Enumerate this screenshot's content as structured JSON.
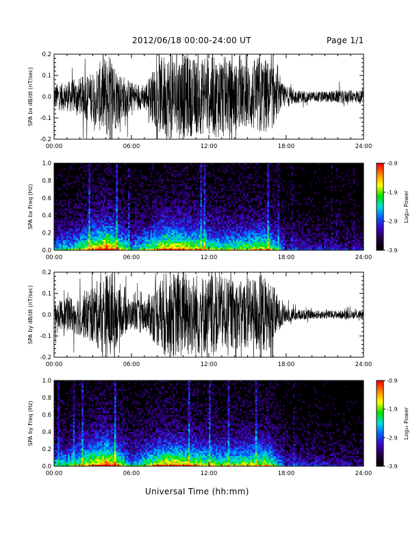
{
  "header": {
    "title": "2012/06/18   00:00-24:00 UT",
    "page": "Page 1/1"
  },
  "xaxis_caption": "Universal Time (hh:mm)",
  "colorbar": {
    "label": "Log₁₀ Power",
    "ticks": [
      "-0.9",
      "-1.9",
      "-2.9",
      "-3.9"
    ],
    "colors": [
      "#ff0000",
      "#ff8c00",
      "#ffff00",
      "#00e000",
      "#00e0e0",
      "#0060ff",
      "#4000c0",
      "#200040",
      "#000000"
    ]
  },
  "chart_data": [
    {
      "type": "line",
      "ylabel": "SPA bx dB/dt (nT/sec)",
      "xlim": [
        "00:00",
        "24:00"
      ],
      "xticks": [
        "00:00",
        "06:00",
        "12:00",
        "18:00",
        "24:00"
      ],
      "ylim": [
        -0.2,
        0.2
      ],
      "yticks": [
        "0.2",
        "0.1",
        "0.0",
        "-0.1",
        "-0.2"
      ],
      "series": [
        {
          "x_hours": [
            0,
            1,
            2,
            3,
            4,
            4.5,
            5,
            6,
            7,
            8,
            8.5,
            9,
            10,
            11,
            12,
            13,
            14,
            15,
            16,
            17,
            17.5,
            18,
            19,
            20,
            21,
            22,
            23,
            24
          ],
          "amplitude": [
            0.06,
            0.07,
            0.09,
            0.12,
            0.2,
            0.2,
            0.12,
            0.07,
            0.06,
            0.16,
            0.2,
            0.2,
            0.2,
            0.18,
            0.18,
            0.2,
            0.16,
            0.15,
            0.2,
            0.15,
            0.07,
            0.05,
            0.03,
            0.025,
            0.025,
            0.03,
            0.03,
            0.03
          ]
        }
      ]
    },
    {
      "type": "heatmap",
      "ylabel": "SPA bx Freq (Hz)",
      "xlim": [
        "00:00",
        "24:00"
      ],
      "xticks": [
        "00:00",
        "06:00",
        "12:00",
        "18:00",
        "24:00"
      ],
      "ylim": [
        0.0,
        1.0
      ],
      "yticks": [
        "1.0",
        "0.8",
        "0.6",
        "0.4",
        "0.2",
        "0.0"
      ],
      "zlim": [
        -3.9,
        -0.9
      ],
      "power_scale_hours": [
        0,
        1.5,
        4.1,
        6,
        8.5,
        9.5,
        11,
        13,
        16.5,
        18,
        24
      ],
      "power_scale_values": [
        0.45,
        0.55,
        1.0,
        0.45,
        0.85,
        0.85,
        0.75,
        0.6,
        0.75,
        0.3,
        0.2
      ]
    },
    {
      "type": "line",
      "ylabel": "SPA by dB/dt (nT/sec)",
      "xlim": [
        "00:00",
        "24:00"
      ],
      "xticks": [
        "00:00",
        "06:00",
        "12:00",
        "18:00",
        "24:00"
      ],
      "ylim": [
        -0.2,
        0.2
      ],
      "yticks": [
        "0.2",
        "0.1",
        "0.0",
        "-0.1",
        "-0.2"
      ],
      "series": [
        {
          "x_hours": [
            0,
            1,
            2,
            3,
            4,
            4.5,
            5,
            6,
            7,
            8,
            8.5,
            9,
            10,
            11,
            12,
            13,
            14,
            15,
            16,
            17,
            17.5,
            18,
            19,
            20,
            21,
            22,
            23,
            24
          ],
          "amplitude": [
            0.06,
            0.08,
            0.1,
            0.14,
            0.2,
            0.2,
            0.12,
            0.07,
            0.07,
            0.15,
            0.2,
            0.2,
            0.2,
            0.2,
            0.18,
            0.18,
            0.16,
            0.16,
            0.2,
            0.14,
            0.07,
            0.04,
            0.025,
            0.02,
            0.02,
            0.02,
            0.02,
            0.02
          ]
        }
      ]
    },
    {
      "type": "heatmap",
      "ylabel": "SPA by Freq (Hz)",
      "xlim": [
        "00:00",
        "24:00"
      ],
      "xticks": [
        "00:00",
        "06:00",
        "12:00",
        "18:00",
        "24:00"
      ],
      "ylim": [
        0.0,
        1.0
      ],
      "yticks": [
        "1.0",
        "0.8",
        "0.6",
        "0.4",
        "0.2",
        "0.0"
      ],
      "zlim": [
        -3.9,
        -0.9
      ],
      "power_scale_hours": [
        0,
        1.5,
        4.1,
        6,
        8.5,
        9.5,
        11,
        13,
        16.5,
        18,
        24
      ],
      "power_scale_values": [
        0.5,
        0.6,
        1.0,
        0.45,
        0.85,
        0.85,
        0.75,
        0.65,
        0.75,
        0.3,
        0.2
      ]
    }
  ]
}
